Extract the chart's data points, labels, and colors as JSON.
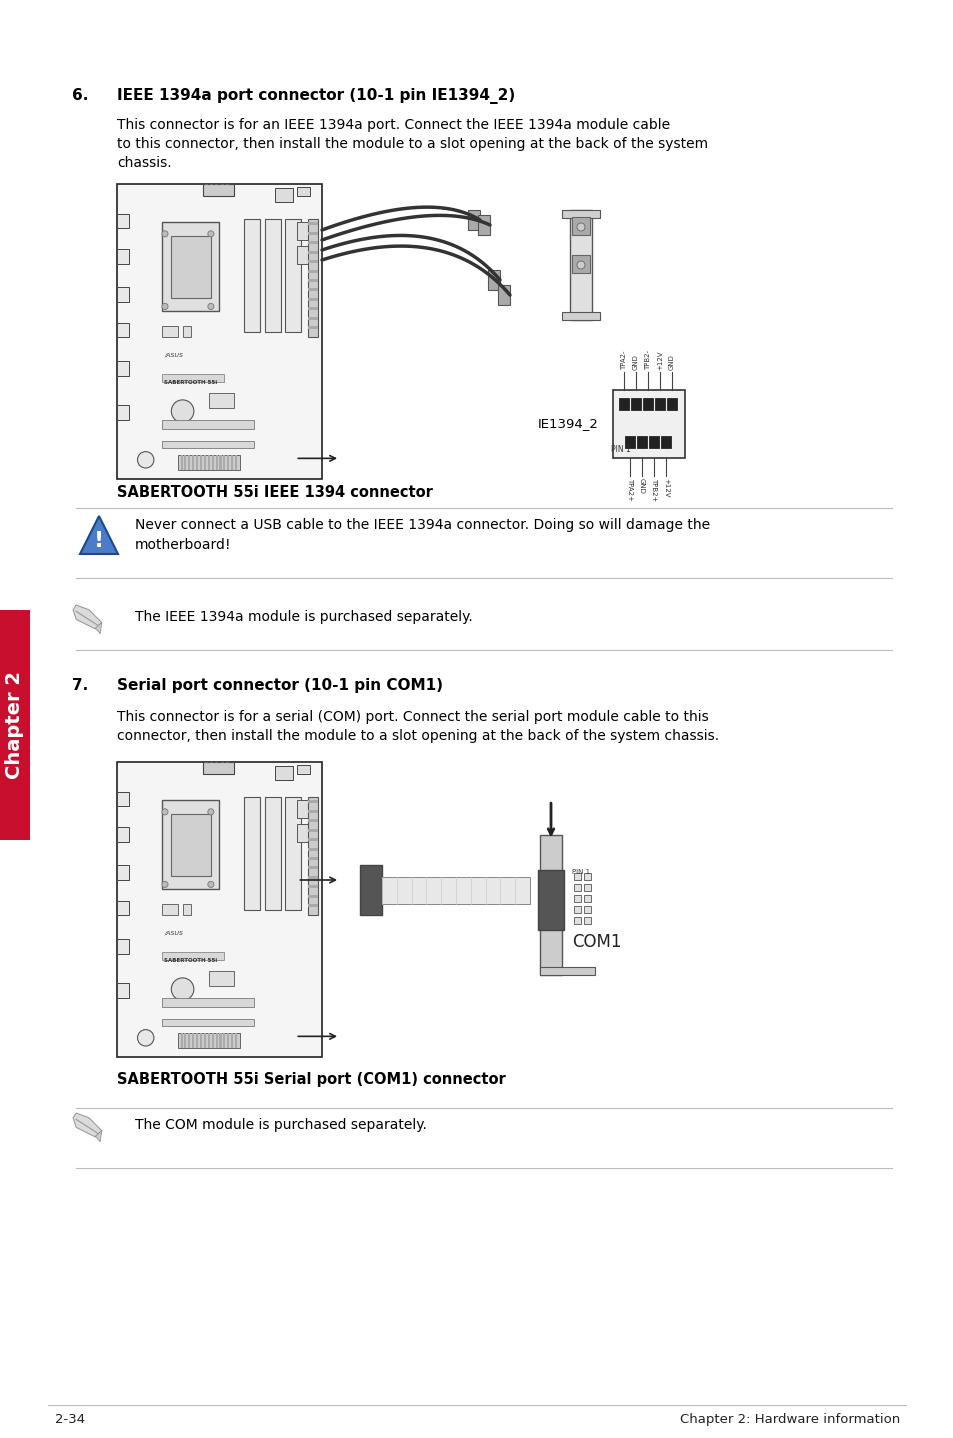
{
  "page_number": "2-34",
  "page_footer_right": "Chapter 2: Hardware information",
  "chapter_label": "Chapter 2",
  "chapter_label_color": "#c8102e",
  "background_color": "#ffffff",
  "section6_number": "6.",
  "section6_title": "IEEE 1394a port connector (10-1 pin IE1394_2)",
  "section6_body_line1": "This connector is for an IEEE 1394a port. Connect the IEEE 1394a module cable",
  "section6_body_line2": "to this connector, then install the module to a slot opening at the back of the system",
  "section6_body_line3": "chassis.",
  "section6_diagram_caption": "SABERTOOTH 55i IEEE 1394 connector",
  "section6_warning_text_line1": "Never connect a USB cable to the IEEE 1394a connector. Doing so will damage the",
  "section6_warning_text_line2": "motherboard!",
  "section6_note_text": "The IEEE 1394a module is purchased separately.",
  "section7_number": "7.",
  "section7_title": "Serial port connector (10-1 pin COM1)",
  "section7_body_line1": "This connector is for a serial (COM) port. Connect the serial port module cable to this",
  "section7_body_line2": "connector, then install the module to a slot opening at the back of the system chassis.",
  "section7_diagram_caption": "SABERTOOTH 55i Serial port (COM1) connector",
  "section7_note_text": "The COM module is purchased separately.",
  "divider_color": "#bbbbbb",
  "tab_color": "#c8102e",
  "tab_text_color": "#ffffff",
  "ieee_top_labels": [
    "TPA2-",
    "GND",
    "TPB2-",
    "+12V",
    "GND"
  ],
  "ieee_bot_labels": [
    "TPA2+",
    "GND",
    "TPB2+",
    "+12V"
  ]
}
